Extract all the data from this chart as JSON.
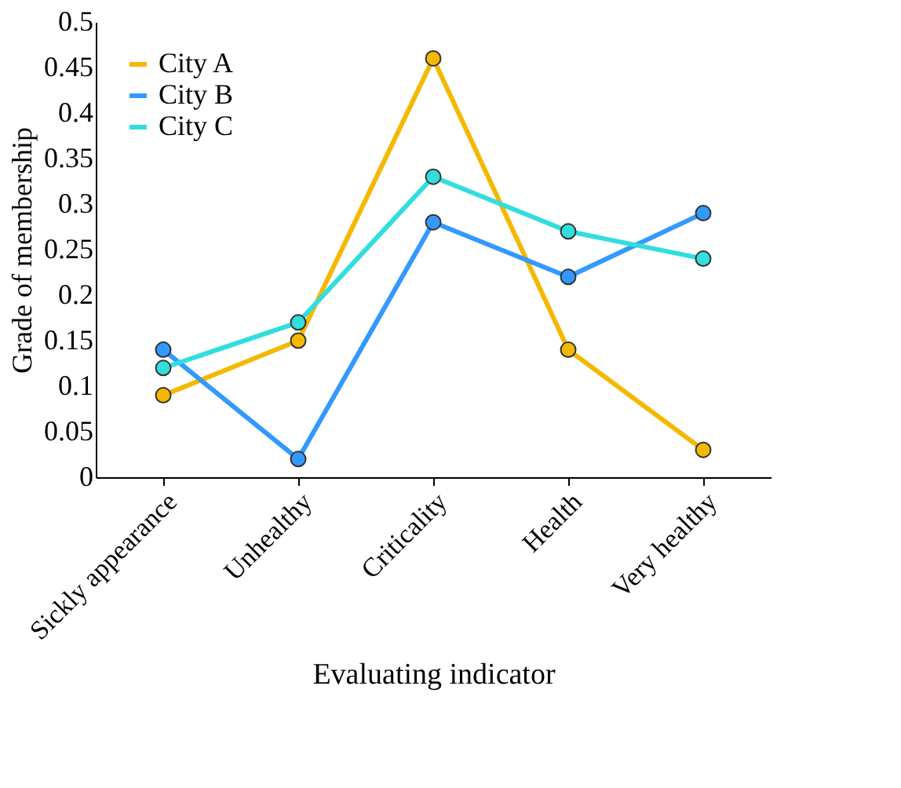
{
  "chart_data": {
    "type": "line",
    "xlabel": "Evaluating indicator",
    "ylabel": "Grade of membership",
    "categories": [
      "Sickly appearance",
      "Unhealthy",
      "Criticality",
      "Health",
      "Very healthy"
    ],
    "series": [
      {
        "name": "City A",
        "color": "#f5b800",
        "values": [
          0.09,
          0.15,
          0.46,
          0.14,
          0.03
        ]
      },
      {
        "name": "City B",
        "color": "#3399ff",
        "values": [
          0.14,
          0.02,
          0.28,
          0.22,
          0.29
        ]
      },
      {
        "name": "City C",
        "color": "#33dddd",
        "values": [
          0.12,
          0.17,
          0.33,
          0.27,
          0.24
        ]
      }
    ],
    "ylim": [
      0,
      0.5
    ],
    "yticks": [
      0,
      0.05,
      0.1,
      0.15,
      0.2,
      0.25,
      0.3,
      0.35,
      0.4,
      0.45,
      0.5
    ],
    "grid": false,
    "legend": "top left",
    "marker": "circle",
    "line_style": "solid"
  }
}
